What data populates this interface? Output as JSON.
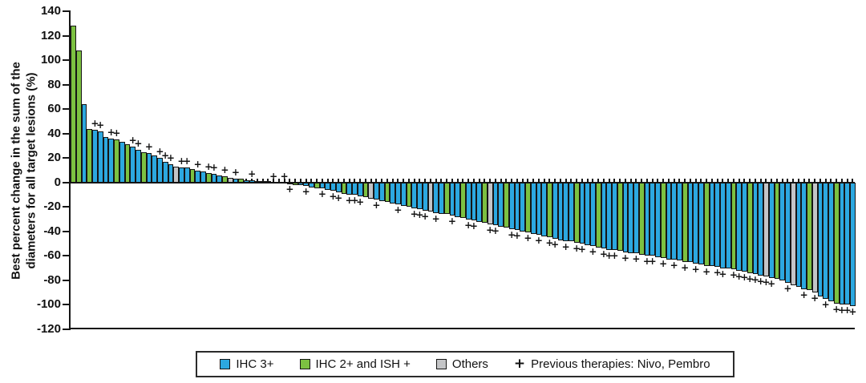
{
  "chart_data": {
    "type": "bar",
    "subtype": "waterfall",
    "title": "",
    "xlabel": "",
    "ylabel": "Best percent change in the sum of the diameters for all target lesions (%)",
    "ylabel_lines": [
      "Best percent change in the sum of the",
      "diameters for all target lesions (%)"
    ],
    "ylim": [
      -120,
      140
    ],
    "ytick_interval": 20,
    "yticks": [
      140,
      120,
      100,
      80,
      60,
      40,
      20,
      0,
      -20,
      -40,
      -60,
      -80,
      -100,
      -120
    ],
    "grid": "off",
    "legend_position": "bottom",
    "colors": {
      "b": "#2CA8E0",
      "g": "#7CC141",
      "o": "#C4C5C7"
    },
    "color_names": {
      "b": "IHC 3+",
      "g": "IHC 2+ and ISH +",
      "o": "Others"
    },
    "marker_meaning": "Previous therapies: Nivo, Pembro",
    "bars_note": "each bar = one patient; value = best % change, c = color category, p = previous-therapies plus marker",
    "bars": [
      [
        128,
        "g",
        0
      ],
      [
        108,
        "g",
        0
      ],
      [
        64,
        "b",
        0
      ],
      [
        44,
        "g",
        0
      ],
      [
        43,
        "b",
        1
      ],
      [
        42,
        "b",
        1
      ],
      [
        37,
        "b",
        0
      ],
      [
        36,
        "b",
        1
      ],
      [
        35,
        "g",
        1
      ],
      [
        33,
        "b",
        0
      ],
      [
        31,
        "g",
        0
      ],
      [
        29,
        "b",
        1
      ],
      [
        27,
        "b",
        1
      ],
      [
        25,
        "g",
        0
      ],
      [
        24,
        "b",
        1
      ],
      [
        22,
        "b",
        0
      ],
      [
        20,
        "b",
        1
      ],
      [
        17,
        "b",
        1
      ],
      [
        15,
        "b",
        1
      ],
      [
        13,
        "o",
        0
      ],
      [
        12,
        "b",
        1
      ],
      [
        12,
        "b",
        1
      ],
      [
        11,
        "g",
        0
      ],
      [
        10,
        "b",
        1
      ],
      [
        9,
        "b",
        0
      ],
      [
        8,
        "g",
        1
      ],
      [
        7,
        "b",
        1
      ],
      [
        6,
        "b",
        0
      ],
      [
        5,
        "g",
        1
      ],
      [
        4,
        "o",
        0
      ],
      [
        3,
        "b",
        1
      ],
      [
        3,
        "g",
        0
      ],
      [
        2,
        "b",
        0
      ],
      [
        2,
        "b",
        1
      ],
      [
        1,
        "b",
        0
      ],
      [
        1,
        "g",
        0
      ],
      [
        1,
        "b",
        0
      ],
      [
        0,
        "b",
        1
      ],
      [
        0,
        "b",
        0
      ],
      [
        0,
        "b",
        1
      ],
      [
        -1,
        "b",
        1
      ],
      [
        -2,
        "g",
        0
      ],
      [
        -2,
        "b",
        0
      ],
      [
        -3,
        "b",
        1
      ],
      [
        -4,
        "b",
        0
      ],
      [
        -5,
        "g",
        0
      ],
      [
        -5,
        "b",
        1
      ],
      [
        -6,
        "b",
        0
      ],
      [
        -7,
        "b",
        1
      ],
      [
        -8,
        "b",
        1
      ],
      [
        -9,
        "g",
        0
      ],
      [
        -10,
        "b",
        1
      ],
      [
        -10,
        "b",
        1
      ],
      [
        -11,
        "b",
        1
      ],
      [
        -12,
        "g",
        0
      ],
      [
        -13,
        "o",
        0
      ],
      [
        -14,
        "b",
        1
      ],
      [
        -15,
        "b",
        0
      ],
      [
        -16,
        "g",
        0
      ],
      [
        -17,
        "b",
        0
      ],
      [
        -18,
        "b",
        1
      ],
      [
        -19,
        "b",
        0
      ],
      [
        -20,
        "g",
        0
      ],
      [
        -21,
        "b",
        1
      ],
      [
        -22,
        "b",
        1
      ],
      [
        -23,
        "b",
        1
      ],
      [
        -24,
        "o",
        0
      ],
      [
        -25,
        "b",
        1
      ],
      [
        -26,
        "b",
        0
      ],
      [
        -26,
        "g",
        0
      ],
      [
        -27,
        "b",
        1
      ],
      [
        -28,
        "b",
        0
      ],
      [
        -29,
        "g",
        0
      ],
      [
        -30,
        "b",
        1
      ],
      [
        -31,
        "b",
        1
      ],
      [
        -32,
        "b",
        0
      ],
      [
        -33,
        "g",
        0
      ],
      [
        -34,
        "o",
        1
      ],
      [
        -35,
        "b",
        1
      ],
      [
        -36,
        "b",
        0
      ],
      [
        -37,
        "g",
        0
      ],
      [
        -38,
        "b",
        1
      ],
      [
        -39,
        "b",
        1
      ],
      [
        -40,
        "b",
        0
      ],
      [
        -41,
        "g",
        1
      ],
      [
        -42,
        "b",
        0
      ],
      [
        -43,
        "b",
        1
      ],
      [
        -44,
        "b",
        0
      ],
      [
        -45,
        "g",
        1
      ],
      [
        -46,
        "b",
        1
      ],
      [
        -47,
        "b",
        0
      ],
      [
        -48,
        "b",
        1
      ],
      [
        -48,
        "b",
        0
      ],
      [
        -49,
        "g",
        1
      ],
      [
        -50,
        "b",
        1
      ],
      [
        -51,
        "b",
        0
      ],
      [
        -52,
        "b",
        1
      ],
      [
        -53,
        "g",
        0
      ],
      [
        -54,
        "b",
        1
      ],
      [
        -55,
        "b",
        1
      ],
      [
        -55,
        "b",
        1
      ],
      [
        -56,
        "g",
        0
      ],
      [
        -57,
        "b",
        1
      ],
      [
        -58,
        "b",
        0
      ],
      [
        -58,
        "b",
        1
      ],
      [
        -59,
        "g",
        0
      ],
      [
        -60,
        "b",
        1
      ],
      [
        -60,
        "b",
        1
      ],
      [
        -61,
        "b",
        0
      ],
      [
        -62,
        "g",
        1
      ],
      [
        -63,
        "b",
        0
      ],
      [
        -63,
        "b",
        1
      ],
      [
        -64,
        "b",
        0
      ],
      [
        -65,
        "g",
        1
      ],
      [
        -65,
        "b",
        0
      ],
      [
        -66,
        "b",
        1
      ],
      [
        -67,
        "b",
        0
      ],
      [
        -68,
        "g",
        1
      ],
      [
        -68,
        "b",
        0
      ],
      [
        -69,
        "b",
        1
      ],
      [
        -70,
        "b",
        1
      ],
      [
        -70,
        "b",
        0
      ],
      [
        -71,
        "g",
        1
      ],
      [
        -72,
        "b",
        1
      ],
      [
        -73,
        "b",
        1
      ],
      [
        -74,
        "g",
        1
      ],
      [
        -75,
        "b",
        1
      ],
      [
        -76,
        "b",
        1
      ],
      [
        -77,
        "o",
        1
      ],
      [
        -78,
        "b",
        1
      ],
      [
        -79,
        "g",
        0
      ],
      [
        -80,
        "b",
        0
      ],
      [
        -82,
        "b",
        1
      ],
      [
        -84,
        "o",
        0
      ],
      [
        -85,
        "b",
        0
      ],
      [
        -87,
        "b",
        1
      ],
      [
        -88,
        "g",
        0
      ],
      [
        -90,
        "o",
        1
      ],
      [
        -93,
        "b",
        0
      ],
      [
        -95,
        "b",
        1
      ],
      [
        -97,
        "b",
        0
      ],
      [
        -99,
        "g",
        1
      ],
      [
        -100,
        "b",
        1
      ],
      [
        -100,
        "b",
        1
      ],
      [
        -101,
        "b",
        1
      ]
    ]
  },
  "legend": {
    "items": [
      {
        "label": "IHC 3+",
        "swatch": "#2CA8E0"
      },
      {
        "label": "IHC 2+ and ISH +",
        "swatch": "#7CC141"
      },
      {
        "label": "Others",
        "swatch": "#C4C5C7"
      },
      {
        "label": "Previous therapies: Nivo, Pembro",
        "marker": "+"
      }
    ]
  }
}
